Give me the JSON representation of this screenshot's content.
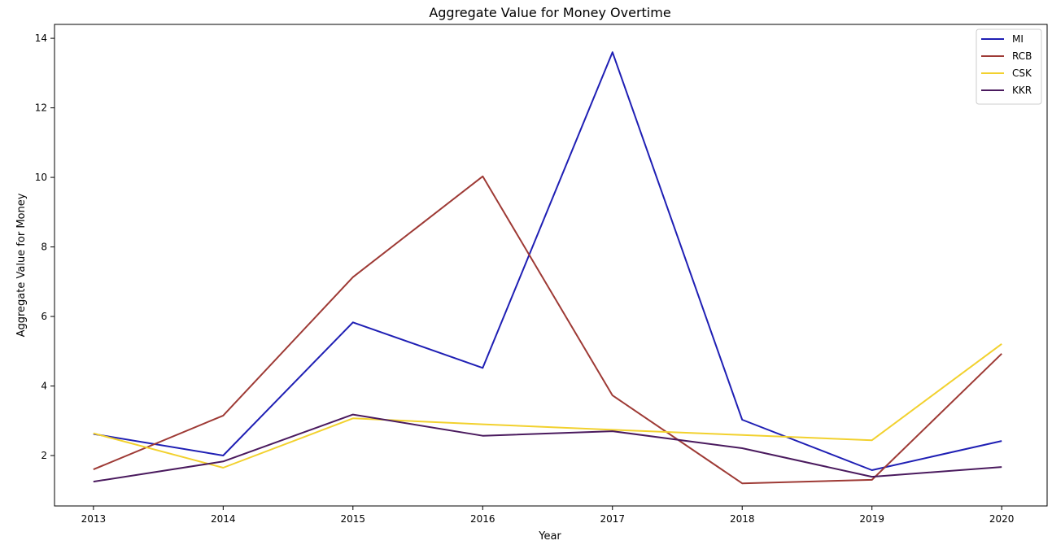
{
  "chart_data": {
    "type": "line",
    "title": "Aggregate Value for Money Overtime",
    "xlabel": "Year",
    "ylabel": "Aggregate Value for Money",
    "x": [
      2013,
      2014,
      2015,
      2016,
      2017,
      2018,
      2019,
      2020
    ],
    "xticks": [
      "2013",
      "2014",
      "2015",
      "2016",
      "2017",
      "2018",
      "2019",
      "2020"
    ],
    "yticks": [
      2,
      4,
      6,
      8,
      10,
      12,
      14
    ],
    "xlim": [
      2012.7,
      2020.35
    ],
    "ylim": [
      0.55,
      14.4
    ],
    "grid": false,
    "legend_position": "top-right",
    "series": [
      {
        "name": "MI",
        "color": "#1f1fb4",
        "values": [
          2.62,
          2.0,
          5.83,
          4.52,
          13.6,
          3.03,
          1.58,
          2.42
        ]
      },
      {
        "name": "RCB",
        "color": "#9e3a35",
        "values": [
          1.6,
          3.15,
          7.13,
          10.03,
          3.73,
          1.2,
          1.3,
          4.93
        ]
      },
      {
        "name": "CSK",
        "color": "#f2d12e",
        "values": [
          2.64,
          1.65,
          3.07,
          2.9,
          2.74,
          2.59,
          2.44,
          5.21
        ]
      },
      {
        "name": "KKR",
        "color": "#4a1a5e",
        "values": [
          1.25,
          1.83,
          3.18,
          2.57,
          2.7,
          2.21,
          1.39,
          1.67
        ]
      }
    ]
  }
}
